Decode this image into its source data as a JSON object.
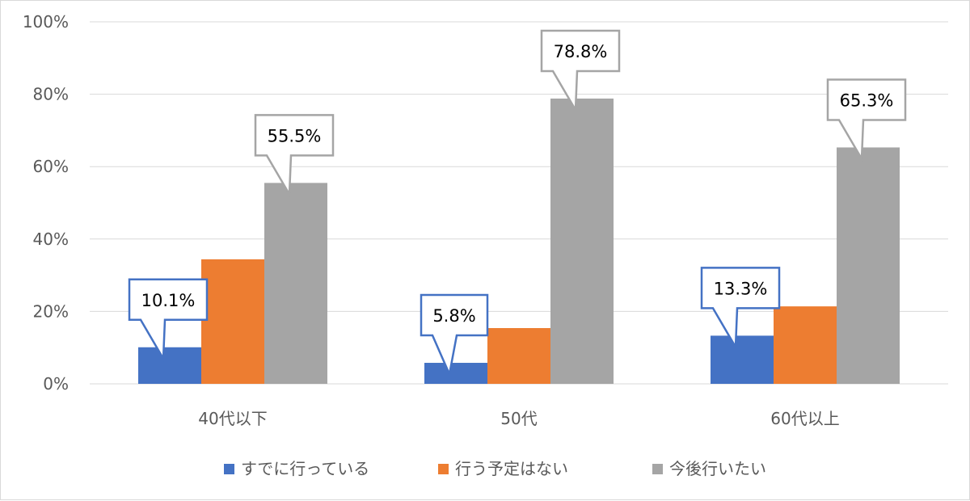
{
  "chart_data": {
    "type": "bar",
    "categories": [
      "40代以下",
      "50代",
      "60代以上"
    ],
    "series": [
      {
        "name": "すでに行っている",
        "color": "#4472c4",
        "values": [
          10.1,
          5.8,
          13.3
        ],
        "labels": [
          "10.1%",
          "5.8%",
          "13.3%"
        ]
      },
      {
        "name": "行う予定はない",
        "color": "#ed7d31",
        "values": [
          34.4,
          15.4,
          21.4
        ],
        "labels": [
          null,
          null,
          null
        ]
      },
      {
        "name": "今後行いたい",
        "color": "#a5a5a5",
        "values": [
          55.5,
          78.8,
          65.3
        ],
        "labels": [
          "55.5%",
          "78.8%",
          "65.3%"
        ]
      }
    ],
    "yticks": [
      "0%",
      "20%",
      "40%",
      "60%",
      "80%",
      "100%"
    ],
    "ylim": [
      0,
      100
    ],
    "grid": true,
    "legend_position": "bottom",
    "title": "",
    "xlabel": "",
    "ylabel": ""
  }
}
